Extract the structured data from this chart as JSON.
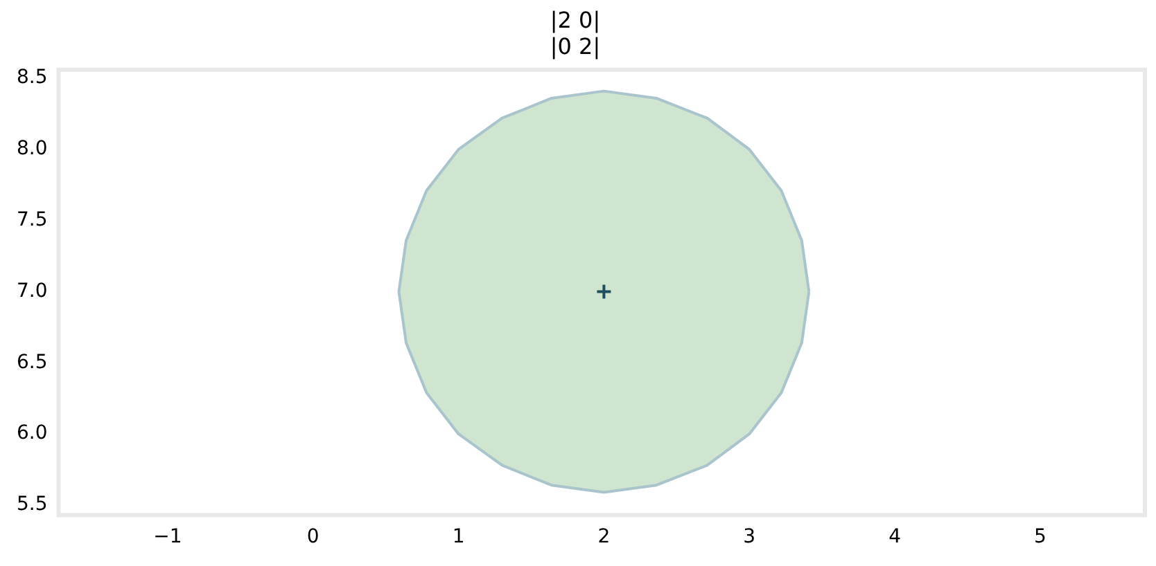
{
  "chart_data": {
    "type": "area",
    "title": "|2 0|\n|0 2|",
    "xlim": [
      -1.75,
      5.72
    ],
    "ylim": [
      5.43,
      8.56
    ],
    "xticks": [
      {
        "value": -1,
        "label": "−1"
      },
      0,
      1,
      2,
      3,
      4,
      5
    ],
    "yticks": [
      5.5,
      {
        "value": 6,
        "label": "6.0"
      },
      6.5,
      {
        "value": 7,
        "label": "7.0"
      },
      7.5,
      {
        "value": 8,
        "label": "8.0"
      },
      8.5
    ],
    "grid": false,
    "legend": false,
    "series": [
      {
        "color": "#cfe5cf",
        "x": [
          3.41,
          3.36,
          3.22,
          3.0,
          2.71,
          2.36,
          2.0,
          1.64,
          1.3,
          1.0,
          0.78,
          0.64,
          0.59,
          0.64,
          0.78,
          1.0,
          1.3,
          1.64,
          2.0,
          2.36,
          2.71,
          3.0,
          3.22,
          3.36,
          3.41
        ],
        "values": [
          7.0,
          7.36,
          7.71,
          8.0,
          8.22,
          8.36,
          8.41,
          8.36,
          8.22,
          8.0,
          7.71,
          7.36,
          7.0,
          6.64,
          6.29,
          6.0,
          5.78,
          5.64,
          5.59,
          5.64,
          5.78,
          6.0,
          6.29,
          6.64,
          7.0
        ]
      },
      {
        "type": "scatter",
        "color": "#1f4e5f",
        "marker": "cross",
        "x": [
          2
        ],
        "values": [
          7
        ]
      }
    ]
  }
}
